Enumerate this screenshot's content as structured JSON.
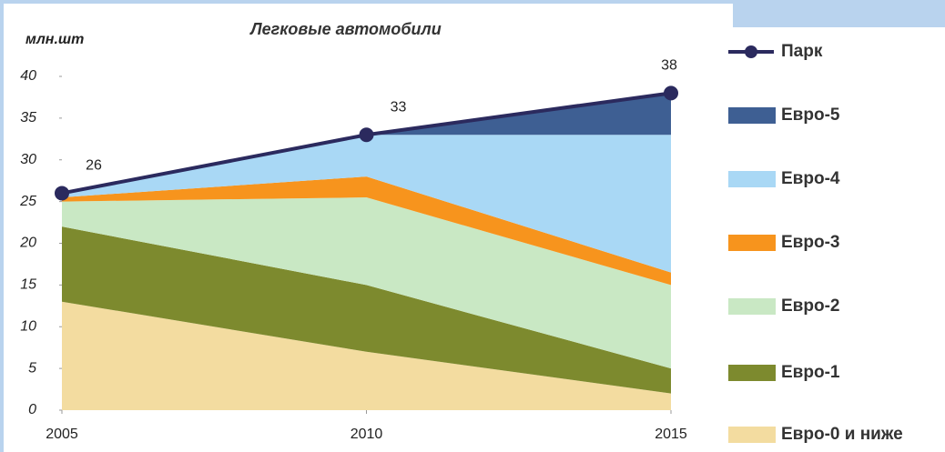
{
  "chart_data": {
    "type": "area",
    "stacked": true,
    "title": "Легковые автомобили",
    "y_label": "млн.шт",
    "x": [
      2005,
      2010,
      2015
    ],
    "xlim": [
      2005,
      2015
    ],
    "xticks": [
      2005,
      2010,
      2015
    ],
    "ylim": [
      0,
      40
    ],
    "yticks": [
      0,
      5,
      10,
      15,
      20,
      25,
      30,
      35,
      40
    ],
    "legend": "right",
    "series": [
      {
        "name": "Евро-0 и ниже",
        "color": "#f3dca0",
        "values": [
          13,
          7,
          2
        ]
      },
      {
        "name": "Евро-1",
        "color": "#7d8a2e",
        "values": [
          9,
          8,
          3
        ]
      },
      {
        "name": "Евро-2",
        "color": "#c9e8c4",
        "values": [
          3,
          10.5,
          10
        ]
      },
      {
        "name": "Евро-3",
        "color": "#f7941d",
        "values": [
          0.5,
          2.5,
          1.5
        ]
      },
      {
        "name": "Евро-4",
        "color": "#a9d8f5",
        "values": [
          0.5,
          5,
          16.5
        ]
      },
      {
        "name": "Евро-5",
        "color": "#3e5f93",
        "values": [
          0,
          0,
          5
        ]
      },
      {
        "name": "Парк",
        "color": "#2b2a5e",
        "type": "line",
        "values": [
          26,
          33,
          38
        ]
      }
    ]
  }
}
